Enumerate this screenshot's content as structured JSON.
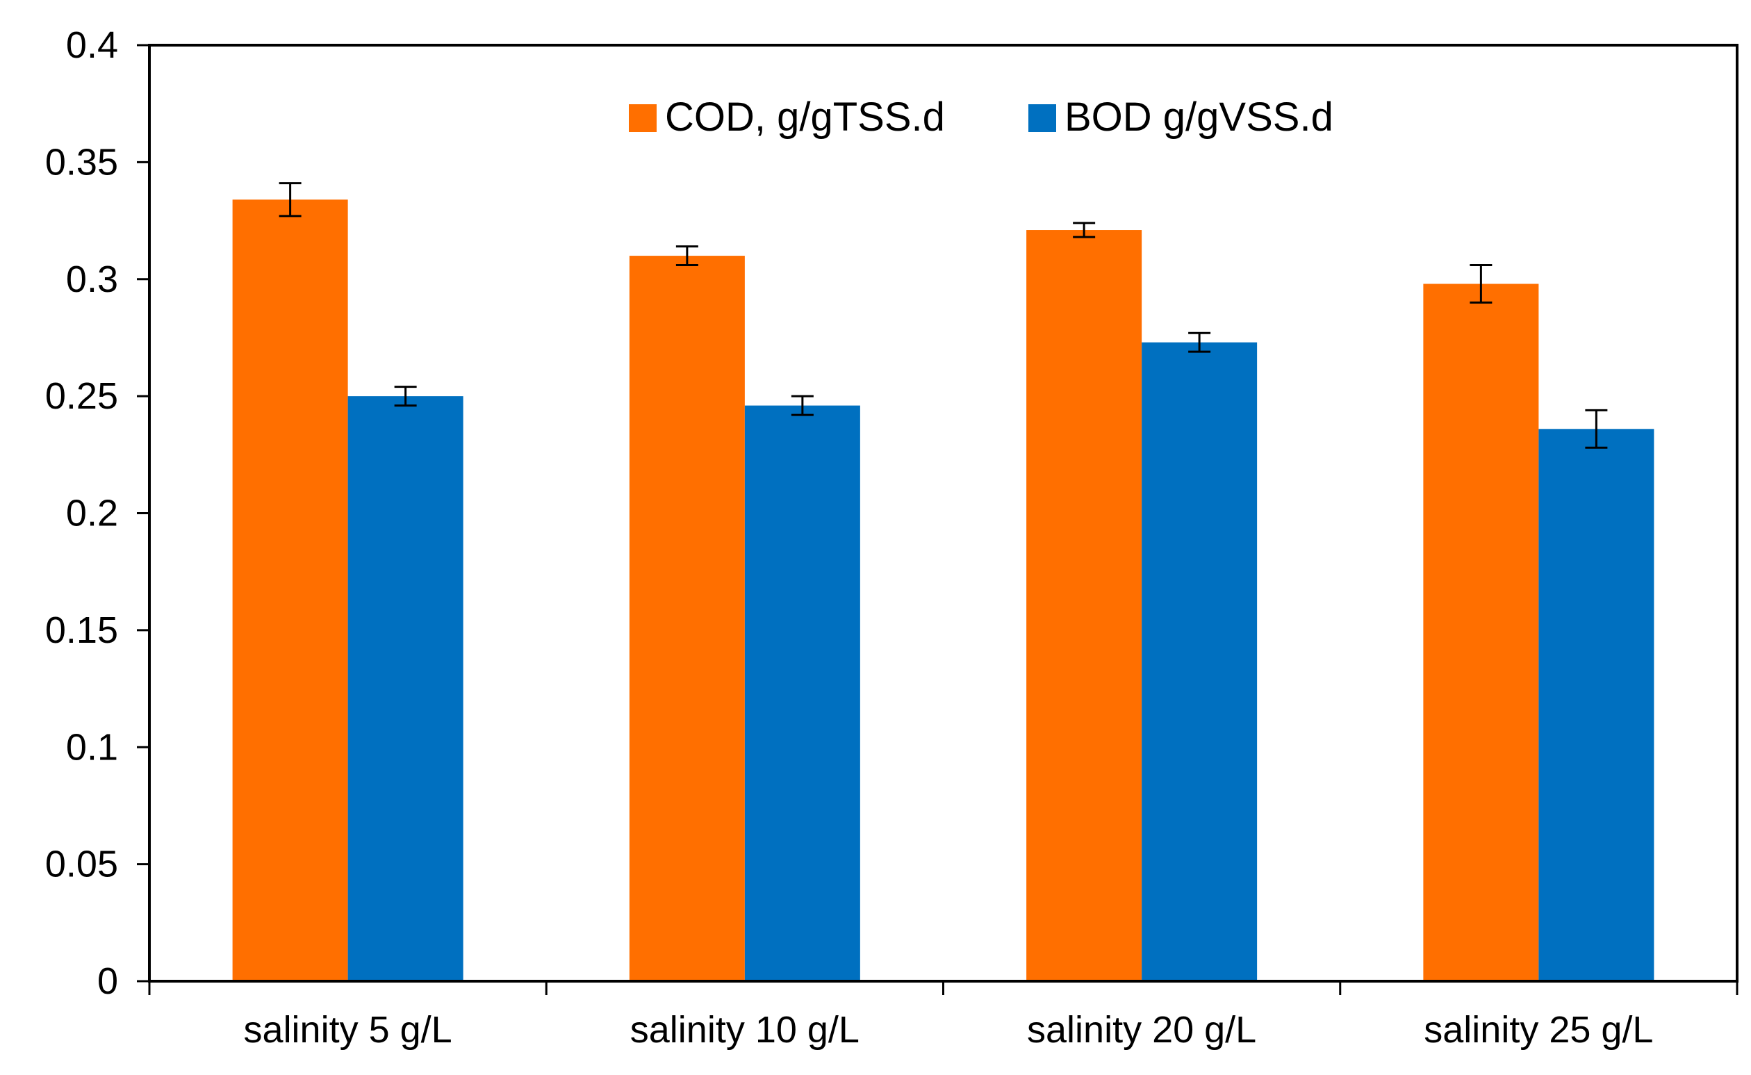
{
  "chart_data": {
    "type": "bar",
    "title": "",
    "xlabel": "",
    "ylabel": "",
    "categories": [
      "salinity 5 g/L",
      "salinity 10 g/L",
      "salinity 20 g/L",
      "salinity 25 g/L"
    ],
    "series": [
      {
        "name": "COD, g/gTSS.d",
        "color": "#FF6F00",
        "values": [
          0.334,
          0.31,
          0.321,
          0.298
        ],
        "errors": [
          0.007,
          0.004,
          0.003,
          0.008
        ]
      },
      {
        "name": "BOD g/gVSS.d",
        "color": "#0070C0",
        "values": [
          0.25,
          0.246,
          0.273,
          0.236
        ],
        "errors": [
          0.004,
          0.004,
          0.004,
          0.008
        ]
      }
    ],
    "ylim": [
      0,
      0.4
    ],
    "yticks": [
      "0",
      "0.05",
      "0.1",
      "0.15",
      "0.2",
      "0.25",
      "0.3",
      "0.35",
      "0.4"
    ],
    "grid": false,
    "legend_position": "top-center"
  }
}
